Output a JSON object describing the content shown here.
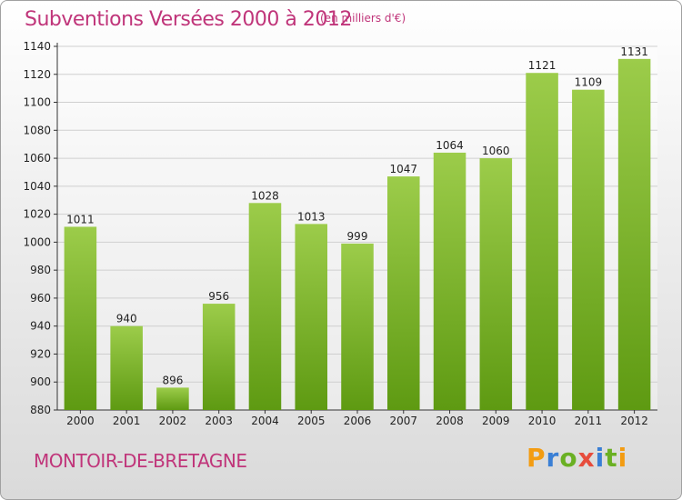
{
  "title": "Subventions Versées 2000 à 2012",
  "subtitle": "(en milliers d'€)",
  "commune": "MONTOIR-DE-BRETAGNE",
  "logo": {
    "text": "Proxiti",
    "letters": [
      {
        "ch": "P",
        "color": "#f39c12"
      },
      {
        "ch": "r",
        "color": "#3a7fd5"
      },
      {
        "ch": "o",
        "color": "#6ab023"
      },
      {
        "ch": "x",
        "color": "#e74c3c"
      },
      {
        "ch": "i",
        "color": "#3a7fd5"
      },
      {
        "ch": "t",
        "color": "#6ab023"
      },
      {
        "ch": "i",
        "color": "#f39c12"
      }
    ]
  },
  "colors": {
    "bar_top": "#9ccc4a",
    "bar_bottom": "#5e9a12",
    "grid": "#cfcfcf",
    "axis": "#333333"
  },
  "chart_data": {
    "type": "bar",
    "categories": [
      "2000",
      "2001",
      "2002",
      "2003",
      "2004",
      "2005",
      "2006",
      "2007",
      "2008",
      "2009",
      "2010",
      "2011",
      "2012"
    ],
    "values": [
      1011,
      940,
      896,
      956,
      1028,
      1013,
      999,
      1047,
      1064,
      1060,
      1121,
      1109,
      1131
    ],
    "ylim": [
      880,
      1140
    ],
    "yticks": [
      880,
      900,
      920,
      940,
      960,
      980,
      1000,
      1020,
      1040,
      1060,
      1080,
      1100,
      1120,
      1140
    ],
    "grid": true,
    "data_labels": true
  }
}
